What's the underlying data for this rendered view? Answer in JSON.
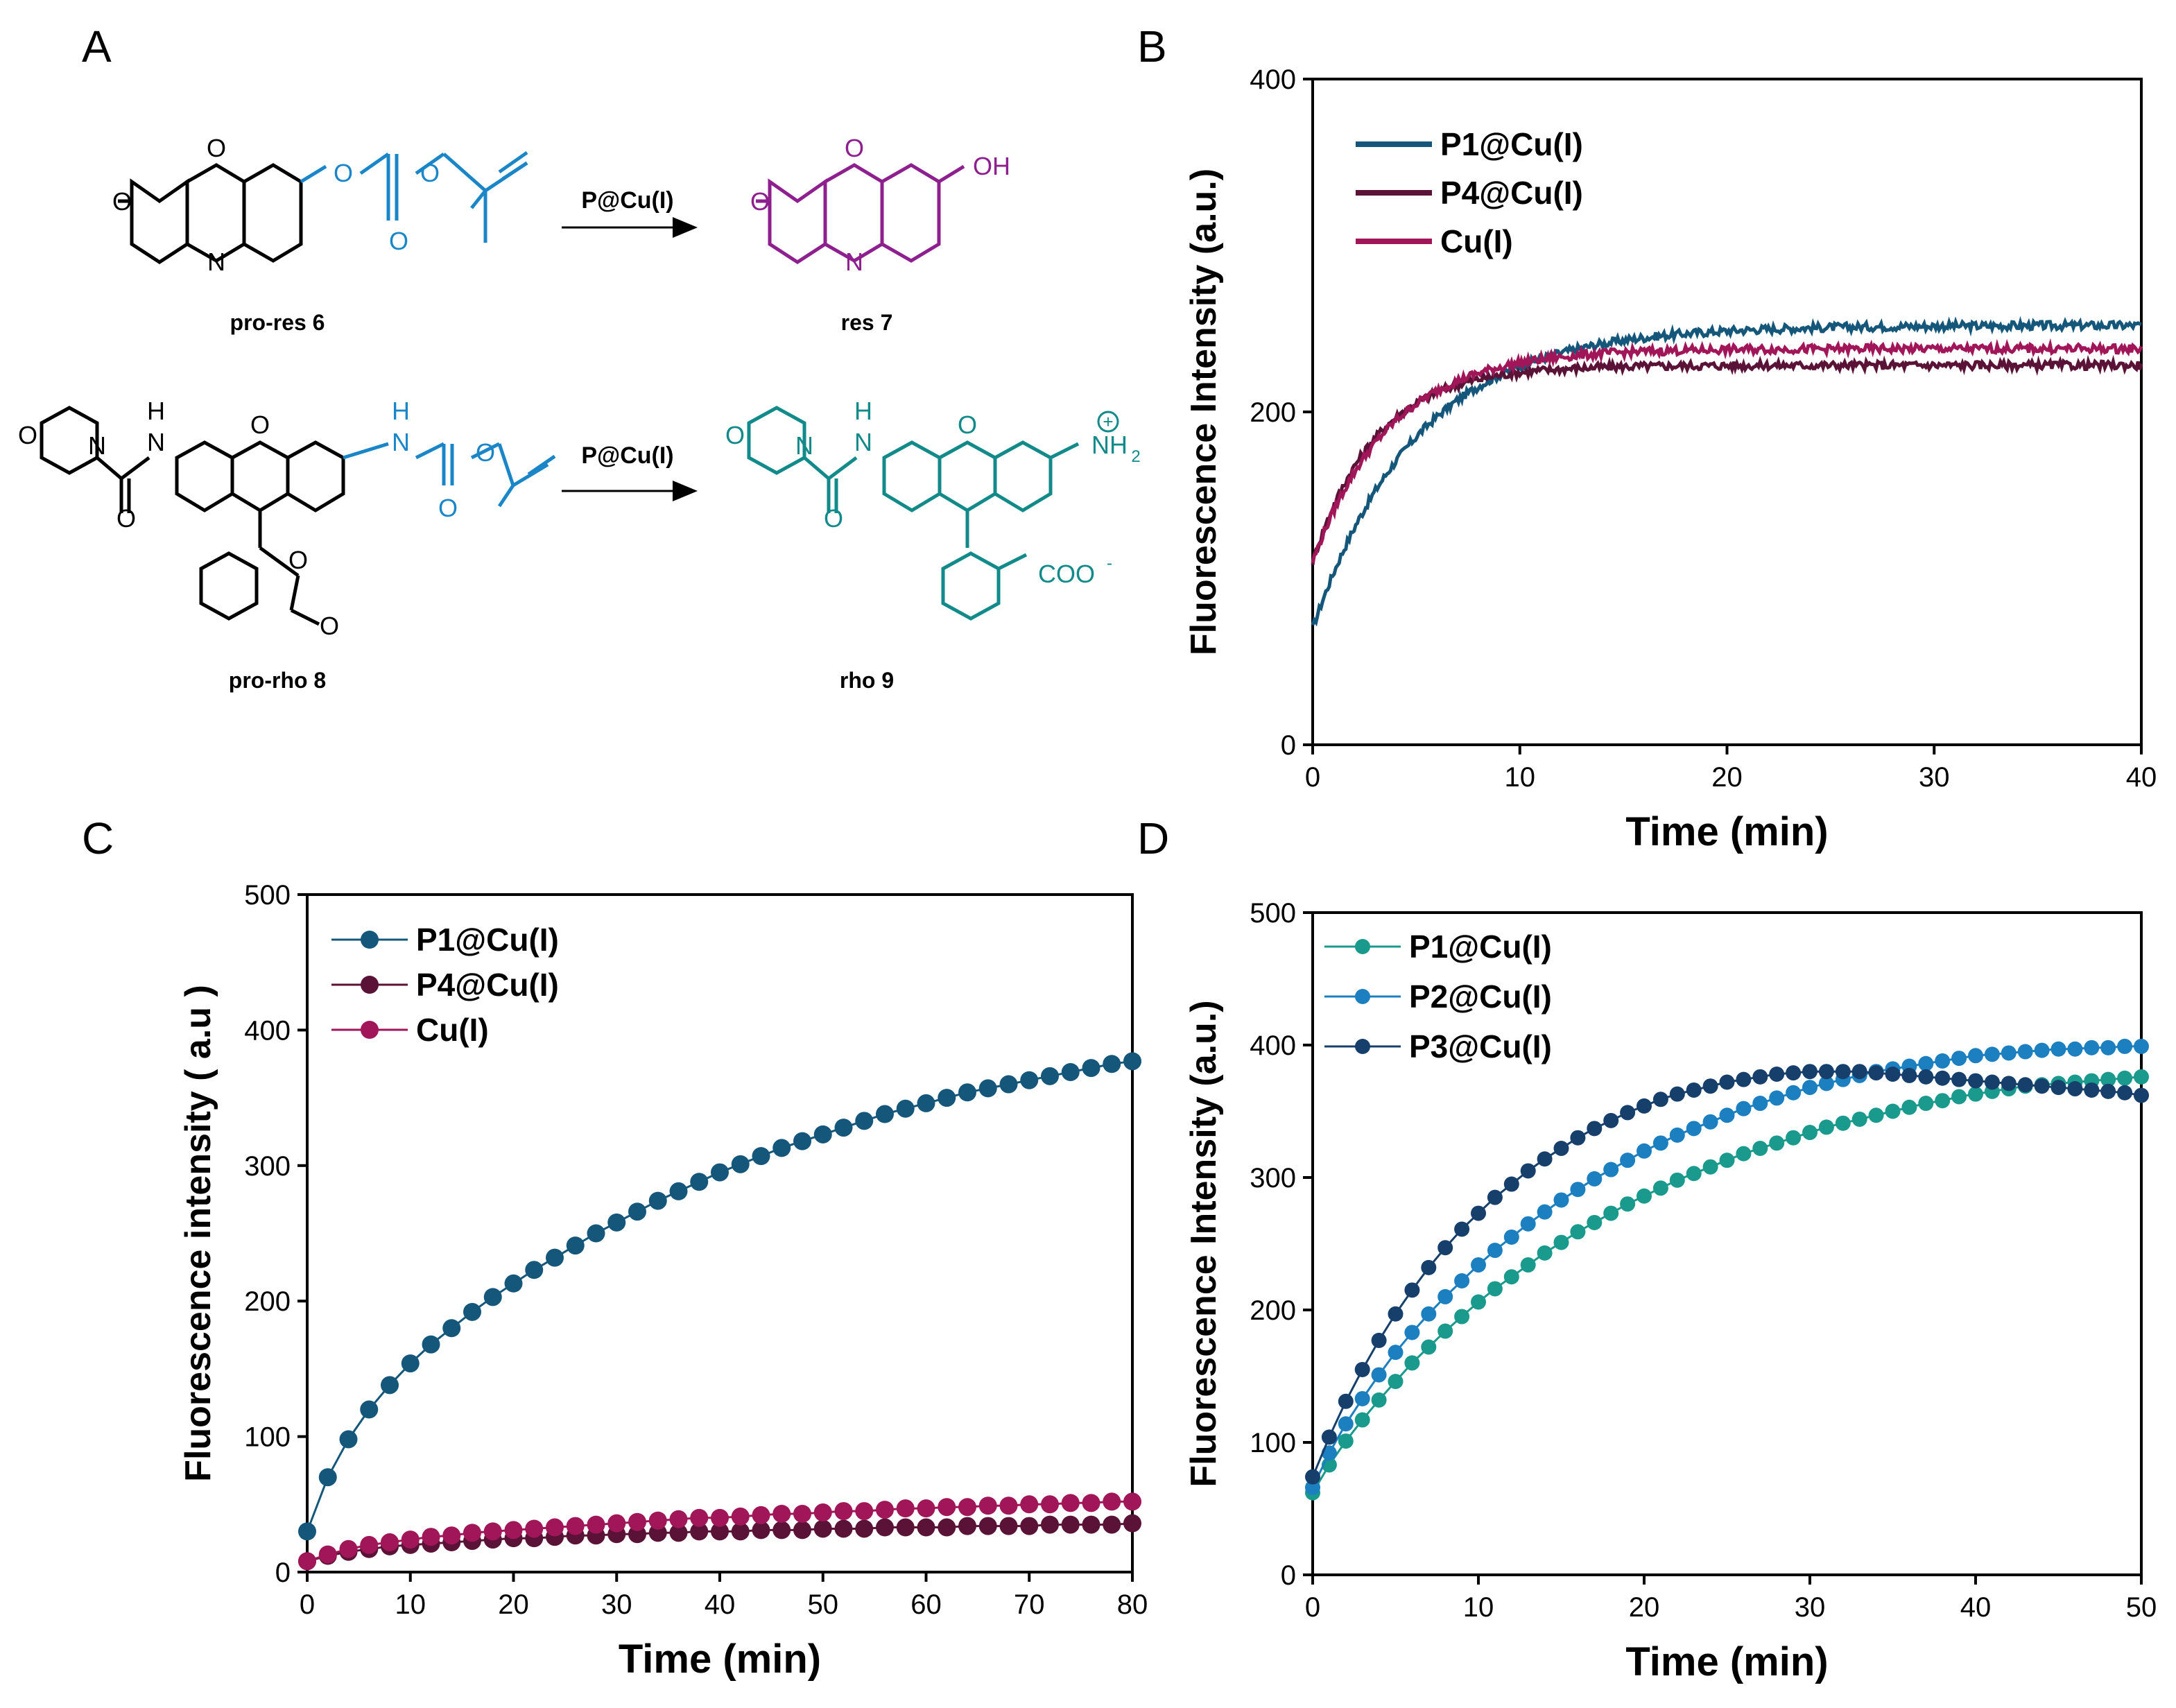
{
  "panels": {
    "a": "A",
    "b": "B",
    "c": "C",
    "d": "D"
  },
  "scheme": {
    "row1": {
      "reagent": "P@Cu(I)",
      "reactant_label": "pro-res 6",
      "product_label": "res 7"
    },
    "row2": {
      "reagent": "P@Cu(I)",
      "reactant_label": "pro-rho 8",
      "product_label": "rho 9"
    },
    "atoms": {
      "O": "O",
      "N": "N",
      "H": "H",
      "OH": "OH",
      "NH2": "NH",
      "NH2_sub": "2",
      "COO": "COO",
      "COO_sup": "-",
      "plus": "+"
    },
    "colors": {
      "res": "#8e1f8e",
      "linker": "#1a86c8",
      "rho": "#138a8a",
      "black": "#000000"
    }
  },
  "chart_data": [
    {
      "id": "B",
      "type": "line",
      "title": "",
      "xlabel": "Time (min)",
      "ylabel": "Fluorescence Intensity (a.u.)",
      "xlim": [
        0,
        40
      ],
      "ylim": [
        0,
        400
      ],
      "xticks": [
        0,
        10,
        20,
        30,
        40
      ],
      "yticks": [
        0,
        200,
        400
      ],
      "legend": "top-left",
      "series": [
        {
          "name": "P1@Cu(I)",
          "color": "#15577b",
          "model": {
            "a": 252,
            "b": 182,
            "k": 0.2
          }
        },
        {
          "name": "P4@Cu(I)",
          "color": "#5a1237",
          "model": {
            "a": 228,
            "b": 118,
            "k": 0.33
          }
        },
        {
          "name": "Cu(I)",
          "color": "#a11559",
          "model": {
            "a": 238,
            "b": 128,
            "k": 0.27
          }
        }
      ]
    },
    {
      "id": "C",
      "type": "line",
      "title": "",
      "xlabel": "Time (min)",
      "ylabel": "Fluorescence intensity ( a.u )",
      "xlim": [
        0,
        80
      ],
      "ylim": [
        0,
        500
      ],
      "xticks": [
        0,
        10,
        20,
        30,
        40,
        50,
        60,
        70,
        80
      ],
      "yticks": [
        0,
        100,
        200,
        300,
        400,
        500
      ],
      "legend": "top-left",
      "series": [
        {
          "name": "P1@Cu(I)",
          "color": "#15577b",
          "x": [
            0,
            2,
            4,
            6,
            8,
            10,
            12,
            14,
            16,
            18,
            20,
            22,
            24,
            26,
            28,
            30,
            32,
            34,
            36,
            38,
            40,
            42,
            44,
            46,
            48,
            50,
            52,
            54,
            56,
            58,
            60,
            62,
            64,
            66,
            68,
            70,
            72,
            74,
            76,
            78,
            80
          ],
          "values": [
            30,
            70,
            98,
            120,
            138,
            154,
            168,
            180,
            192,
            203,
            213,
            223,
            232,
            241,
            250,
            258,
            266,
            274,
            281,
            288,
            295,
            301,
            307,
            313,
            318,
            323,
            328,
            333,
            338,
            342,
            346,
            350,
            354,
            357,
            360,
            363,
            366,
            369,
            372,
            375,
            377
          ]
        },
        {
          "name": "P4@Cu(I)",
          "color": "#5a1237",
          "x": [
            0,
            2,
            4,
            6,
            8,
            10,
            12,
            14,
            16,
            18,
            20,
            22,
            24,
            26,
            28,
            30,
            32,
            34,
            36,
            38,
            40,
            42,
            44,
            46,
            48,
            50,
            52,
            54,
            56,
            58,
            60,
            62,
            64,
            66,
            68,
            70,
            72,
            74,
            76,
            78,
            80
          ],
          "values": [
            8,
            12,
            15,
            17,
            19,
            20,
            21,
            22,
            23,
            24,
            25,
            25,
            26,
            27,
            27,
            28,
            28,
            29,
            29,
            30,
            30,
            30,
            31,
            31,
            31,
            32,
            32,
            32,
            33,
            33,
            33,
            33,
            34,
            34,
            34,
            34,
            35,
            35,
            35,
            35,
            36
          ]
        },
        {
          "name": "Cu(I)",
          "color": "#a11559",
          "x": [
            0,
            2,
            4,
            6,
            8,
            10,
            12,
            14,
            16,
            18,
            20,
            22,
            24,
            26,
            28,
            30,
            32,
            34,
            36,
            38,
            40,
            42,
            44,
            46,
            48,
            50,
            52,
            54,
            56,
            58,
            60,
            62,
            64,
            66,
            68,
            70,
            72,
            74,
            76,
            78,
            80
          ],
          "values": [
            8,
            13,
            17,
            20,
            22,
            24,
            26,
            27,
            29,
            30,
            31,
            32,
            33,
            34,
            35,
            36,
            37,
            38,
            39,
            40,
            40,
            41,
            42,
            43,
            43,
            44,
            45,
            45,
            46,
            47,
            47,
            48,
            48,
            49,
            49,
            50,
            50,
            51,
            51,
            52,
            52
          ]
        }
      ]
    },
    {
      "id": "D",
      "type": "line",
      "title": "",
      "xlabel": "Time (min)",
      "ylabel": "Fluorescence Intensity (a.u.)",
      "xlim": [
        0,
        50
      ],
      "ylim": [
        0,
        500
      ],
      "xticks": [
        0,
        10,
        20,
        30,
        40,
        50
      ],
      "yticks": [
        0,
        100,
        200,
        300,
        400,
        500
      ],
      "legend": "top-left",
      "series": [
        {
          "name": "P1@Cu(I)",
          "color": "#1a9a8c",
          "x": [
            0,
            1,
            2,
            3,
            4,
            5,
            6,
            7,
            8,
            9,
            10,
            11,
            12,
            13,
            14,
            15,
            16,
            17,
            18,
            19,
            20,
            21,
            22,
            23,
            24,
            25,
            26,
            27,
            28,
            29,
            30,
            31,
            32,
            33,
            34,
            35,
            36,
            37,
            38,
            39,
            40,
            41,
            42,
            43,
            44,
            45,
            46,
            47,
            48,
            49,
            50
          ],
          "values": [
            62,
            83,
            101,
            117,
            132,
            146,
            160,
            172,
            184,
            195,
            206,
            216,
            225,
            234,
            243,
            251,
            259,
            266,
            273,
            280,
            286,
            292,
            298,
            303,
            308,
            313,
            318,
            322,
            326,
            330,
            334,
            338,
            341,
            344,
            347,
            350,
            353,
            356,
            358,
            361,
            363,
            365,
            367,
            369,
            370,
            371,
            372,
            373,
            374,
            375,
            376
          ]
        },
        {
          "name": "P2@Cu(I)",
          "color": "#1c7fc0",
          "x": [
            0,
            1,
            2,
            3,
            4,
            5,
            6,
            7,
            8,
            9,
            10,
            11,
            12,
            13,
            14,
            15,
            16,
            17,
            18,
            19,
            20,
            21,
            22,
            23,
            24,
            25,
            26,
            27,
            28,
            29,
            30,
            31,
            32,
            33,
            34,
            35,
            36,
            37,
            38,
            39,
            40,
            41,
            42,
            43,
            44,
            45,
            46,
            47,
            48,
            49,
            50
          ],
          "values": [
            66,
            92,
            114,
            133,
            151,
            168,
            183,
            197,
            210,
            222,
            234,
            245,
            255,
            265,
            274,
            283,
            291,
            299,
            306,
            313,
            320,
            326,
            332,
            337,
            342,
            347,
            352,
            356,
            360,
            364,
            368,
            371,
            374,
            377,
            380,
            382,
            384,
            386,
            388,
            390,
            392,
            393,
            394,
            395,
            396,
            397,
            397,
            398,
            398,
            399,
            399
          ]
        },
        {
          "name": "P3@Cu(I)",
          "color": "#163f6b",
          "x": [
            0,
            1,
            2,
            3,
            4,
            5,
            6,
            7,
            8,
            9,
            10,
            11,
            12,
            13,
            14,
            15,
            16,
            17,
            18,
            19,
            20,
            21,
            22,
            23,
            24,
            25,
            26,
            27,
            28,
            29,
            30,
            31,
            32,
            33,
            34,
            35,
            36,
            37,
            38,
            39,
            40,
            41,
            42,
            43,
            44,
            45,
            46,
            47,
            48,
            49,
            50
          ],
          "values": [
            74,
            104,
            131,
            155,
            177,
            197,
            215,
            232,
            247,
            261,
            273,
            285,
            295,
            305,
            314,
            322,
            330,
            337,
            343,
            349,
            354,
            359,
            363,
            366,
            369,
            372,
            374,
            376,
            378,
            379,
            380,
            380,
            380,
            380,
            379,
            378,
            377,
            376,
            375,
            374,
            373,
            372,
            371,
            370,
            369,
            368,
            367,
            366,
            365,
            364,
            362
          ]
        }
      ]
    }
  ]
}
